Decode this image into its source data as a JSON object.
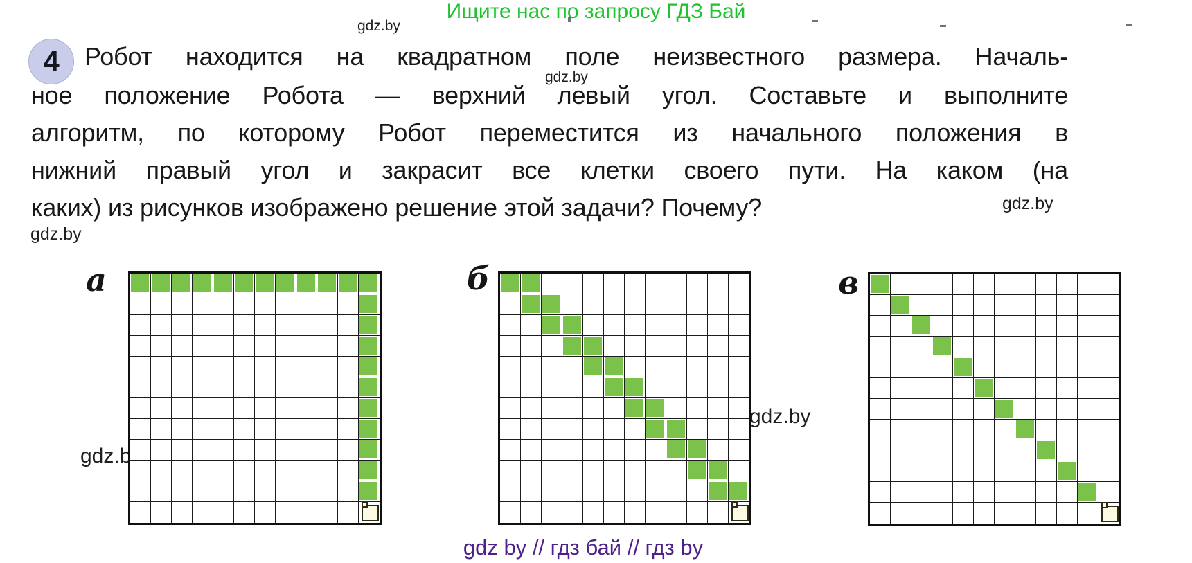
{
  "page": {
    "header_promo": "Ищите нас по запросу ГДЗ Бай",
    "watermark": "gdz.by",
    "footer": "gdz by  //  гдз бай  //  гдз by"
  },
  "task": {
    "number": "4",
    "lines": [
      "Робот находится на квадратном поле неизвестного размера. Началь-",
      "ное положение Робота — верхний левый угол. Составьте и выполните",
      "алгоритм, по которому Робот переместится из начального положения в",
      "нижний правый угол и закрасит все клетки своего пути. На каком (на",
      "каких) из рисунков изображено решение этой задачи? Почему?"
    ]
  },
  "figures": [
    {
      "label": "а",
      "grid_size": 12,
      "filled_cells": [
        [
          0,
          0
        ],
        [
          0,
          1
        ],
        [
          0,
          2
        ],
        [
          0,
          3
        ],
        [
          0,
          4
        ],
        [
          0,
          5
        ],
        [
          0,
          6
        ],
        [
          0,
          7
        ],
        [
          0,
          8
        ],
        [
          0,
          9
        ],
        [
          0,
          10
        ],
        [
          0,
          11
        ],
        [
          1,
          11
        ],
        [
          2,
          11
        ],
        [
          3,
          11
        ],
        [
          4,
          11
        ],
        [
          5,
          11
        ],
        [
          6,
          11
        ],
        [
          7,
          11
        ],
        [
          8,
          11
        ],
        [
          9,
          11
        ],
        [
          10,
          11
        ]
      ],
      "robot_cell": [
        11,
        11
      ]
    },
    {
      "label": "б",
      "grid_size": 12,
      "filled_cells": [
        [
          0,
          0
        ],
        [
          0,
          1
        ],
        [
          1,
          1
        ],
        [
          1,
          2
        ],
        [
          2,
          2
        ],
        [
          2,
          3
        ],
        [
          3,
          3
        ],
        [
          3,
          4
        ],
        [
          4,
          4
        ],
        [
          4,
          5
        ],
        [
          5,
          5
        ],
        [
          5,
          6
        ],
        [
          6,
          6
        ],
        [
          6,
          7
        ],
        [
          7,
          7
        ],
        [
          7,
          8
        ],
        [
          8,
          8
        ],
        [
          8,
          9
        ],
        [
          9,
          9
        ],
        [
          9,
          10
        ],
        [
          10,
          10
        ],
        [
          10,
          11
        ]
      ],
      "robot_cell": [
        11,
        11
      ]
    },
    {
      "label": "в",
      "grid_size": 12,
      "filled_cells": [
        [
          0,
          0
        ],
        [
          1,
          1
        ],
        [
          2,
          2
        ],
        [
          3,
          3
        ],
        [
          4,
          4
        ],
        [
          5,
          5
        ],
        [
          6,
          6
        ],
        [
          7,
          7
        ],
        [
          8,
          8
        ],
        [
          9,
          9
        ],
        [
          10,
          10
        ]
      ],
      "robot_cell": [
        11,
        11
      ]
    }
  ],
  "colors": {
    "header_green": "#1ec42e",
    "cell_green": "#7bc24a",
    "badge_bg": "#c9cdea",
    "robot_fill": "#fcfae2",
    "footer_purple": "#4f2187"
  }
}
